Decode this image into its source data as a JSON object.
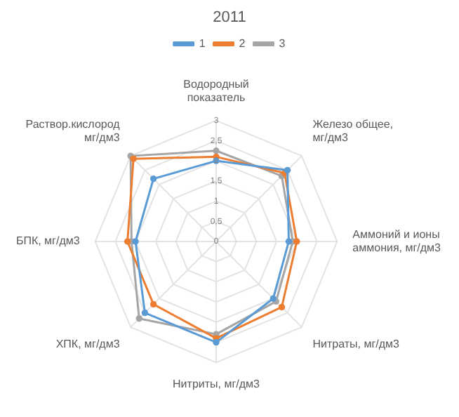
{
  "chart_data": {
    "type": "radar",
    "title": "2011",
    "categories": [
      "Водородный показатель",
      "Железо общее, мг/дм3",
      "Аммоний и ионы аммония, мг/дм3",
      "Нитраты, мг/дм3",
      "Нитриты, мг/дм3",
      "ХПК, мг/дм3",
      "БПК, мг/дм3",
      "Раствор.кислород мг/дм3"
    ],
    "series": [
      {
        "name": "1",
        "color": "#5b9bd5",
        "values": [
          2.0,
          2.5,
          1.8,
          2.0,
          2.5,
          2.5,
          2.0,
          2.2
        ]
      },
      {
        "name": "2",
        "color": "#ed7d31",
        "values": [
          2.1,
          2.4,
          2.0,
          2.3,
          2.4,
          2.2,
          2.2,
          2.9
        ]
      },
      {
        "name": "3",
        "color": "#a5a5a5",
        "values": [
          2.25,
          2.3,
          1.9,
          2.1,
          2.3,
          2.7,
          2.1,
          3.0
        ]
      }
    ],
    "ylim": [
      0,
      3
    ],
    "yticks": [
      0,
      {
        "value": 0.5,
        "label": "0,5"
      },
      1,
      {
        "value": 1.5,
        "label": "1,5"
      },
      2,
      {
        "value": 2.5,
        "label": "2,5"
      },
      3
    ],
    "grid": true,
    "legend": "top",
    "marker": "circle"
  }
}
